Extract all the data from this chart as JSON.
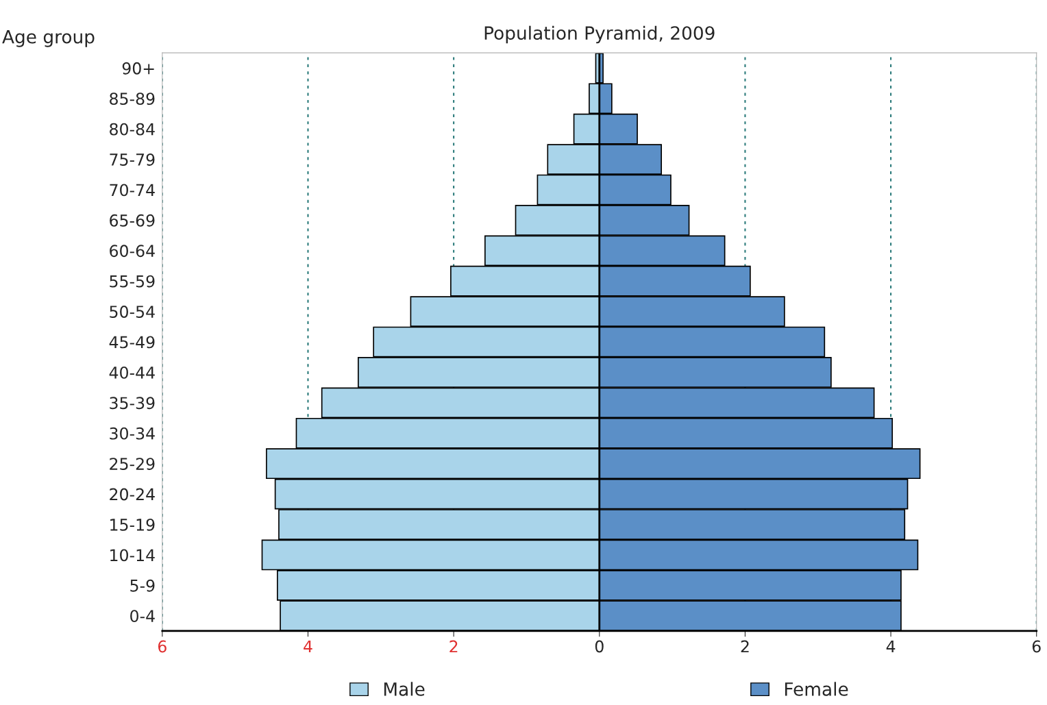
{
  "chart_data": {
    "type": "bar",
    "orientation": "horizontal",
    "stacked": true,
    "title": "Population Pyramid, 2009",
    "ylabel": "Age group",
    "categories": [
      "90+",
      "85-89",
      "80-84",
      "75-79",
      "70-74",
      "65-69",
      "60-64",
      "55-59",
      "50-54",
      "45-49",
      "40-44",
      "35-39",
      "30-34",
      "25-29",
      "20-24",
      "15-19",
      "10-14",
      "5-9",
      "0-4"
    ],
    "series": [
      {
        "name": "Male",
        "color": "#a9d4ea",
        "values": [
          -0.05,
          -0.14,
          -0.35,
          -0.71,
          -0.85,
          -1.15,
          -1.57,
          -2.04,
          -2.59,
          -3.1,
          -3.31,
          -3.81,
          -4.16,
          -4.57,
          -4.45,
          -4.4,
          -4.63,
          -4.42,
          -4.38
        ]
      },
      {
        "name": "Female",
        "color": "#5b8fc7",
        "values": [
          0.05,
          0.17,
          0.52,
          0.85,
          0.98,
          1.23,
          1.72,
          2.07,
          2.54,
          3.09,
          3.18,
          3.77,
          4.02,
          4.4,
          4.23,
          4.19,
          4.37,
          4.14,
          4.14
        ]
      }
    ],
    "xlim": [
      -6,
      6
    ],
    "xticks": [
      {
        "value": -6,
        "label": "6"
      },
      {
        "value": -4,
        "label": "4"
      },
      {
        "value": -2,
        "label": "2"
      },
      0,
      2,
      4,
      6
    ],
    "grid": "x",
    "legend": "bottom"
  }
}
